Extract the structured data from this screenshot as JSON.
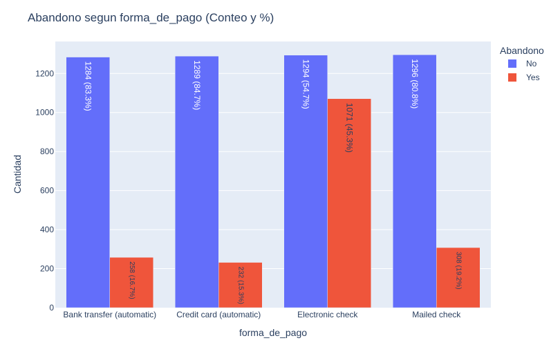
{
  "chart_data": {
    "type": "bar",
    "title": "Abandono segun forma_de_pago (Conteo y %)",
    "xlabel": "forma_de_pago",
    "ylabel": "Cantidad",
    "categories": [
      "Bank transfer (automatic)",
      "Credit card (automatic)",
      "Electronic check",
      "Mailed check"
    ],
    "series": [
      {
        "name": "No",
        "color": "#636efa",
        "values": [
          1284,
          1289,
          1294,
          1296
        ],
        "labels": [
          "1284 (83.3%)",
          "1289 (84.7%)",
          "1294 (54.7%)",
          "1296 (80.8%)"
        ]
      },
      {
        "name": "Yes",
        "color": "#ef553b",
        "values": [
          258,
          232,
          1071,
          308
        ],
        "labels": [
          "258 (16.7%)",
          "232 (15.3%)",
          "1071 (45.3%)",
          "308 (19.2%)"
        ]
      }
    ],
    "yticks": [
      0,
      200,
      400,
      600,
      800,
      1000,
      1200
    ],
    "ylim": [
      0,
      1364
    ],
    "grid": true,
    "legend": {
      "title": "Abandono",
      "placement": "top-right"
    },
    "plot_bgcolor": "#e5ecf6"
  }
}
